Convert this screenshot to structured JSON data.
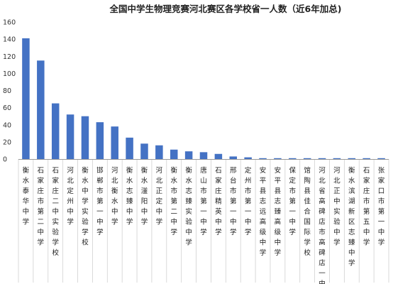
{
  "colors": {
    "bar": "#4472c4",
    "axis": "#999999",
    "text": "#222222"
  },
  "chart_data": {
    "type": "bar",
    "title": "全国中学生物理竞赛河北赛区各学校省一人数（近6年加总)",
    "xlabel": "",
    "ylabel": "",
    "ylim": [
      0,
      160
    ],
    "yticks": [
      0,
      20,
      40,
      60,
      80,
      100,
      120,
      140,
      160
    ],
    "grid": false,
    "legend": "none",
    "categories": [
      "衡水泰华中学",
      "石家庄市第二中学",
      "石家庄二中实验学校",
      "河北定州中学",
      "衡水中学实验学校",
      "邯郸市第一中学",
      "河北衡水中学",
      "衡水志臻中学",
      "衡水滏阳中学",
      "河北正定中学",
      "衡水市第二中学",
      "衡水志臻实验中学",
      "唐山市第一中学",
      "石家庄精英中学",
      "邢台市第一中学",
      "定州市第一中学",
      "安平县志远高级中学",
      "安平县志臻高级中学",
      "保定市第一中学",
      "馆陶县佳合国际学校",
      "河北省高碑店市高碑店一中",
      "河北正中实验中学",
      "衡水滨湖新区志臻中学",
      "石家庄市第五中学",
      "张家口市第一中学"
    ],
    "values": [
      141,
      115,
      65,
      52,
      50,
      43,
      38,
      25,
      18,
      16,
      11,
      9,
      8,
      6,
      3,
      2,
      1,
      1,
      1,
      1,
      1,
      1,
      1,
      1,
      1
    ]
  }
}
